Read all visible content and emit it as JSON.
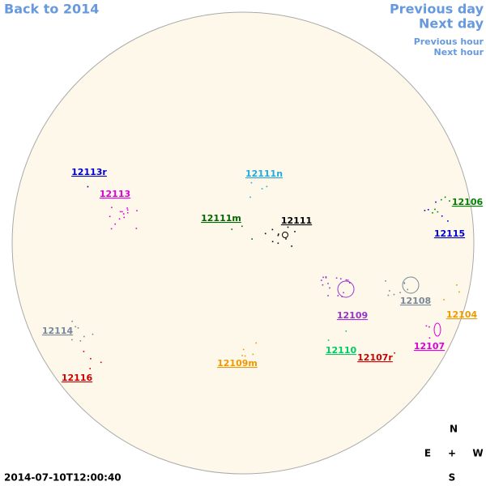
{
  "nav": {
    "back": "Back to 2014",
    "previous_day": "Previous day",
    "next_day": "Next day",
    "previous_hour": "Previous hour",
    "next_hour": "Next hour"
  },
  "regions": [
    {
      "label": "12113r",
      "color": "#0000cc"
    },
    {
      "label": "12111n",
      "color": "#22aadd"
    },
    {
      "label": "12113",
      "color": "#dd00dd"
    },
    {
      "label": "12106",
      "color": "#008000"
    },
    {
      "label": "12111m",
      "color": "#006600"
    },
    {
      "label": "12111",
      "color": "#000000"
    },
    {
      "label": "12115",
      "color": "#0000cc"
    },
    {
      "label": "12108",
      "color": "#778899"
    },
    {
      "label": "12109",
      "color": "#9933cc"
    },
    {
      "label": "12104",
      "color": "#ee9900"
    },
    {
      "label": "12114",
      "color": "#778899"
    },
    {
      "label": "12107",
      "color": "#dd00dd"
    },
    {
      "label": "12110",
      "color": "#00cc66"
    },
    {
      "label": "12107r",
      "color": "#cc0000"
    },
    {
      "label": "12109m",
      "color": "#ee9900"
    },
    {
      "label": "12116",
      "color": "#cc0000"
    }
  ],
  "compass": {
    "north": "N",
    "east": "E",
    "center": "+",
    "west": "W",
    "south": "S"
  },
  "timestamp": "2014-07-10T12:00:40"
}
